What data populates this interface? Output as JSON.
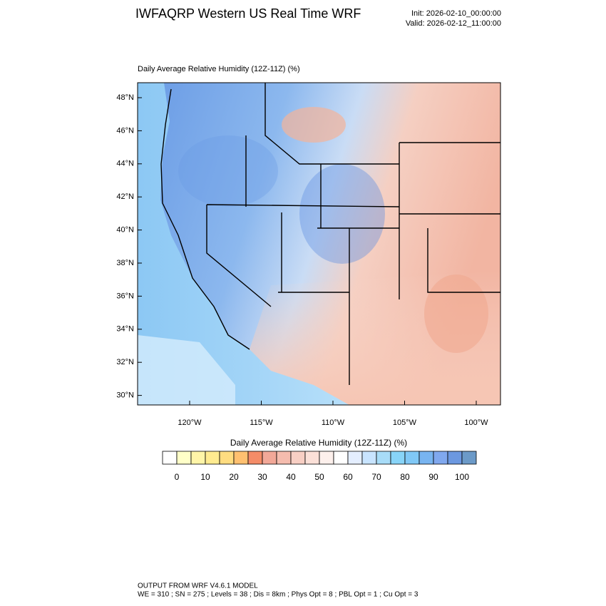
{
  "header": {
    "title": "IWFAQRP Western US Real Time WRF",
    "init": "Init: 2026-02-10_00:00:00",
    "valid": "Valid: 2026-02-12_11:00:00"
  },
  "map": {
    "title": "Daily Average Relative Humidity (12Z-11Z)   (%)",
    "lat_labels": [
      "48°N",
      "46°N",
      "44°N",
      "42°N",
      "40°N",
      "38°N",
      "36°N",
      "34°N",
      "32°N",
      "30°N"
    ],
    "lon_labels": [
      "120°W",
      "115°W",
      "110°W",
      "105°W",
      "100°W"
    ]
  },
  "colorbar": {
    "title": "Daily Average Relative Humidity (12Z-11Z)  (%)",
    "colors": [
      "#ffffff",
      "#ffffc8",
      "#fff5a8",
      "#ffeb90",
      "#ffdc80",
      "#ffc070",
      "#f48c68",
      "#f2a898",
      "#f5bcae",
      "#f8cfc4",
      "#fbe0d8",
      "#fdf0ec",
      "#ffffff",
      "#e4eeff",
      "#c8e4ff",
      "#a8dcf8",
      "#88d4f8",
      "#80c8f6",
      "#78b4f0",
      "#80a8ee",
      "#6c98e0",
      "#6c9ac8"
    ],
    "labels": [
      0,
      10,
      20,
      30,
      40,
      50,
      60,
      70,
      80,
      90,
      100
    ]
  },
  "footer": {
    "line1": "OUTPUT FROM WRF V4.6.1 MODEL",
    "line2": "WE = 310 ; SN = 275 ; Levels = 38 ; Dis = 8km ; Phys Opt = 8 ; PBL Opt = 1 ; Cu Opt = 3"
  }
}
